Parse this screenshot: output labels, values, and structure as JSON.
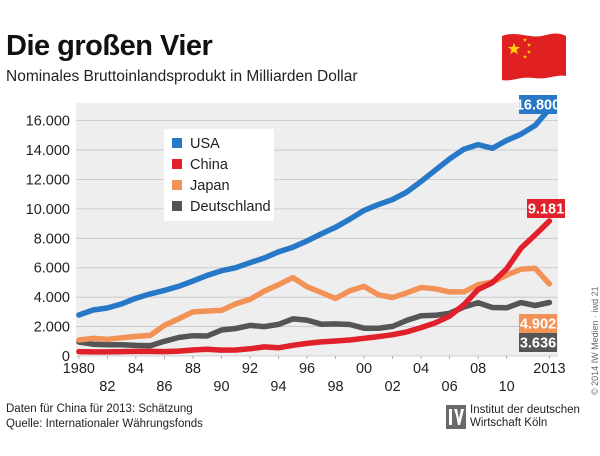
{
  "header": {
    "title": "Die großen Vier",
    "subtitle": "Nominales Bruttoinlandsprodukt in Milliarden Dollar"
  },
  "footer": {
    "note_line1": "Daten für China für 2013: Schätzung",
    "note_line2": "Quelle: Internationaler Währungsfonds",
    "publisher_line1": "Institut der deutschen",
    "publisher_line2": "Wirtschaft Köln",
    "credit": "© 2014 IW Medien · iwd 21"
  },
  "colors": {
    "USA": "#2878c8",
    "China": "#e0202a",
    "Japan": "#f39256",
    "Deutschland": "#555555",
    "plot_background": "#eeeeef",
    "flag_red": "#e02020",
    "flag_star": "#ffd400"
  },
  "chart_data": {
    "type": "line",
    "title": "Die großen Vier",
    "subtitle": "Nominales Bruttoinlandsprodukt in Milliarden Dollar",
    "x": [
      1980,
      1981,
      1982,
      1983,
      1984,
      1985,
      1986,
      1987,
      1988,
      1989,
      1990,
      1991,
      1992,
      1993,
      1994,
      1995,
      1996,
      1997,
      1998,
      1999,
      2000,
      2001,
      2002,
      2003,
      2004,
      2005,
      2006,
      2007,
      2008,
      2009,
      2010,
      2011,
      2012,
      2013
    ],
    "xticks": [
      {
        "value": 1980,
        "label": "1980",
        "row": 1
      },
      {
        "value": 1982,
        "label": "82",
        "row": 2
      },
      {
        "value": 1984,
        "label": "84",
        "row": 1
      },
      {
        "value": 1986,
        "label": "86",
        "row": 2
      },
      {
        "value": 1988,
        "label": "88",
        "row": 1
      },
      {
        "value": 1990,
        "label": "90",
        "row": 2
      },
      {
        "value": 1992,
        "label": "92",
        "row": 1
      },
      {
        "value": 1994,
        "label": "94",
        "row": 2
      },
      {
        "value": 1996,
        "label": "96",
        "row": 1
      },
      {
        "value": 1998,
        "label": "98",
        "row": 2
      },
      {
        "value": 2000,
        "label": "00",
        "row": 1
      },
      {
        "value": 2002,
        "label": "02",
        "row": 2
      },
      {
        "value": 2004,
        "label": "04",
        "row": 1
      },
      {
        "value": 2006,
        "label": "06",
        "row": 2
      },
      {
        "value": 2008,
        "label": "08",
        "row": 1
      },
      {
        "value": 2010,
        "label": "10",
        "row": 2
      },
      {
        "value": 2013,
        "label": "2013",
        "row": 1
      }
    ],
    "yticks": [
      {
        "value": 0,
        "label": "0"
      },
      {
        "value": 2000,
        "label": "2.000"
      },
      {
        "value": 4000,
        "label": "4.000"
      },
      {
        "value": 6000,
        "label": "6.000"
      },
      {
        "value": 8000,
        "label": "8.000"
      },
      {
        "value": 10000,
        "label": "10.000"
      },
      {
        "value": 12000,
        "label": "12.000"
      },
      {
        "value": 14000,
        "label": "14.000"
      },
      {
        "value": 16000,
        "label": "16.000"
      }
    ],
    "ylim": [
      0,
      17200
    ],
    "xlim": [
      1979.8,
      2013.6
    ],
    "grid": true,
    "legend_position": "top-left",
    "series": [
      {
        "name": "USA",
        "values": [
          2790,
          3130,
          3260,
          3540,
          3930,
          4220,
          4460,
          4740,
          5100,
          5480,
          5800,
          6000,
          6340,
          6660,
          7080,
          7400,
          7820,
          8300,
          8750,
          9300,
          9900,
          10290,
          10640,
          11140,
          11870,
          12640,
          13400,
          14060,
          14370,
          14120,
          14660,
          15080,
          15680,
          16800
        ]
      },
      {
        "name": "China",
        "values": [
          300,
          280,
          280,
          300,
          310,
          310,
          300,
          330,
          410,
          460,
          400,
          410,
          490,
          620,
          560,
          730,
          860,
          960,
          1020,
          1090,
          1200,
          1320,
          1450,
          1640,
          1930,
          2260,
          2710,
          3490,
          4520,
          4990,
          5930,
          7320,
          8230,
          9181
        ]
      },
      {
        "name": "Japan",
        "values": [
          1090,
          1200,
          1130,
          1240,
          1330,
          1400,
          2080,
          2530,
          3000,
          3060,
          3100,
          3540,
          3850,
          4410,
          4850,
          5330,
          4710,
          4320,
          3910,
          4430,
          4730,
          4160,
          3980,
          4300,
          4660,
          4570,
          4360,
          4360,
          4850,
          5030,
          5500,
          5900,
          5960,
          4902
        ]
      },
      {
        "name": "Deutschland",
        "values": [
          950,
          800,
          770,
          770,
          720,
          700,
          1000,
          1260,
          1380,
          1360,
          1770,
          1870,
          2080,
          2000,
          2150,
          2520,
          2440,
          2160,
          2180,
          2140,
          1890,
          1880,
          2010,
          2420,
          2730,
          2770,
          2900,
          3330,
          3620,
          3300,
          3280,
          3630,
          3430,
          3636
        ]
      }
    ],
    "end_labels": [
      {
        "series": "USA",
        "label": "16.800"
      },
      {
        "series": "China",
        "label": "9.181"
      },
      {
        "series": "Japan",
        "label": "4.902"
      },
      {
        "series": "Deutschland",
        "label": "3.636"
      }
    ]
  }
}
